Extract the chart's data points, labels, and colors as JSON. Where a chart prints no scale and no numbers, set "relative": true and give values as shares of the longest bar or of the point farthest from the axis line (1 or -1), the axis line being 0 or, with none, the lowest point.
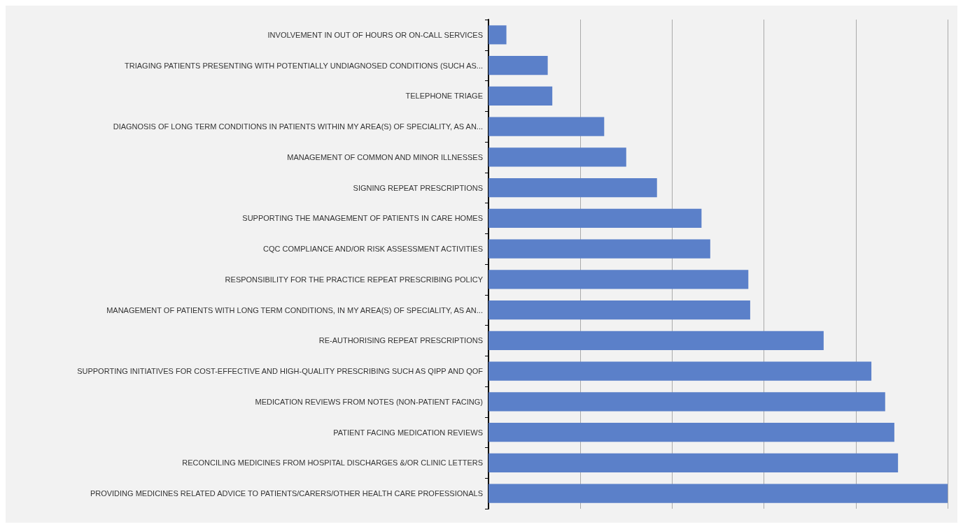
{
  "chart_data": {
    "type": "bar",
    "orientation": "horizontal",
    "relative": true,
    "grid": "x",
    "color": "#5b80c9",
    "categories": [
      "INVOLVEMENT IN OUT OF HOURS OR ON-CALL SERVICES",
      "TRIAGING PATIENTS PRESENTING WITH POTENTIALLY UNDIAGNOSED CONDITIONS (SUCH AS...",
      "TELEPHONE TRIAGE",
      "DIAGNOSIS OF LONG TERM CONDITIONS IN PATIENTS WITHIN MY AREA(S) OF SPECIALITY, AS AN...",
      "MANAGEMENT OF COMMON AND MINOR ILLNESSES",
      "SIGNING REPEAT PRESCRIPTIONS",
      "SUPPORTING THE MANAGEMENT OF PATIENTS IN CARE HOMES",
      "CQC COMPLIANCE AND/OR RISK ASSESSMENT ACTIVITIES",
      "RESPONSIBILITY FOR THE PRACTICE REPEAT PRESCRIBING POLICY",
      "MANAGEMENT OF PATIENTS WITH LONG TERM CONDITIONS, IN MY AREA(S) OF SPECIALITY, AS AN...",
      "RE-AUTHORISING REPEAT PRESCRIPTIONS",
      "SUPPORTING INITIATIVES FOR COST-EFFECTIVE AND HIGH-QUALITY PRESCRIBING SUCH AS QIPP AND QOF",
      "MEDICATION REVIEWS FROM NOTES (NON-PATIENT FACING)",
      "PATIENT FACING MEDICATION REVIEWS",
      "RECONCILING MEDICINES FROM HOSPITAL DISCHARGES &/OR CLINIC LETTERS",
      "PROVIDING MEDICINES RELATED ADVICE TO PATIENTS/CARERS/OTHER HEALTH CARE PROFESSIONALS"
    ],
    "values": [
      0.039,
      0.129,
      0.139,
      0.252,
      0.3,
      0.367,
      0.464,
      0.483,
      0.566,
      0.57,
      0.73,
      0.834,
      0.864,
      0.884,
      0.892,
      1
    ]
  }
}
